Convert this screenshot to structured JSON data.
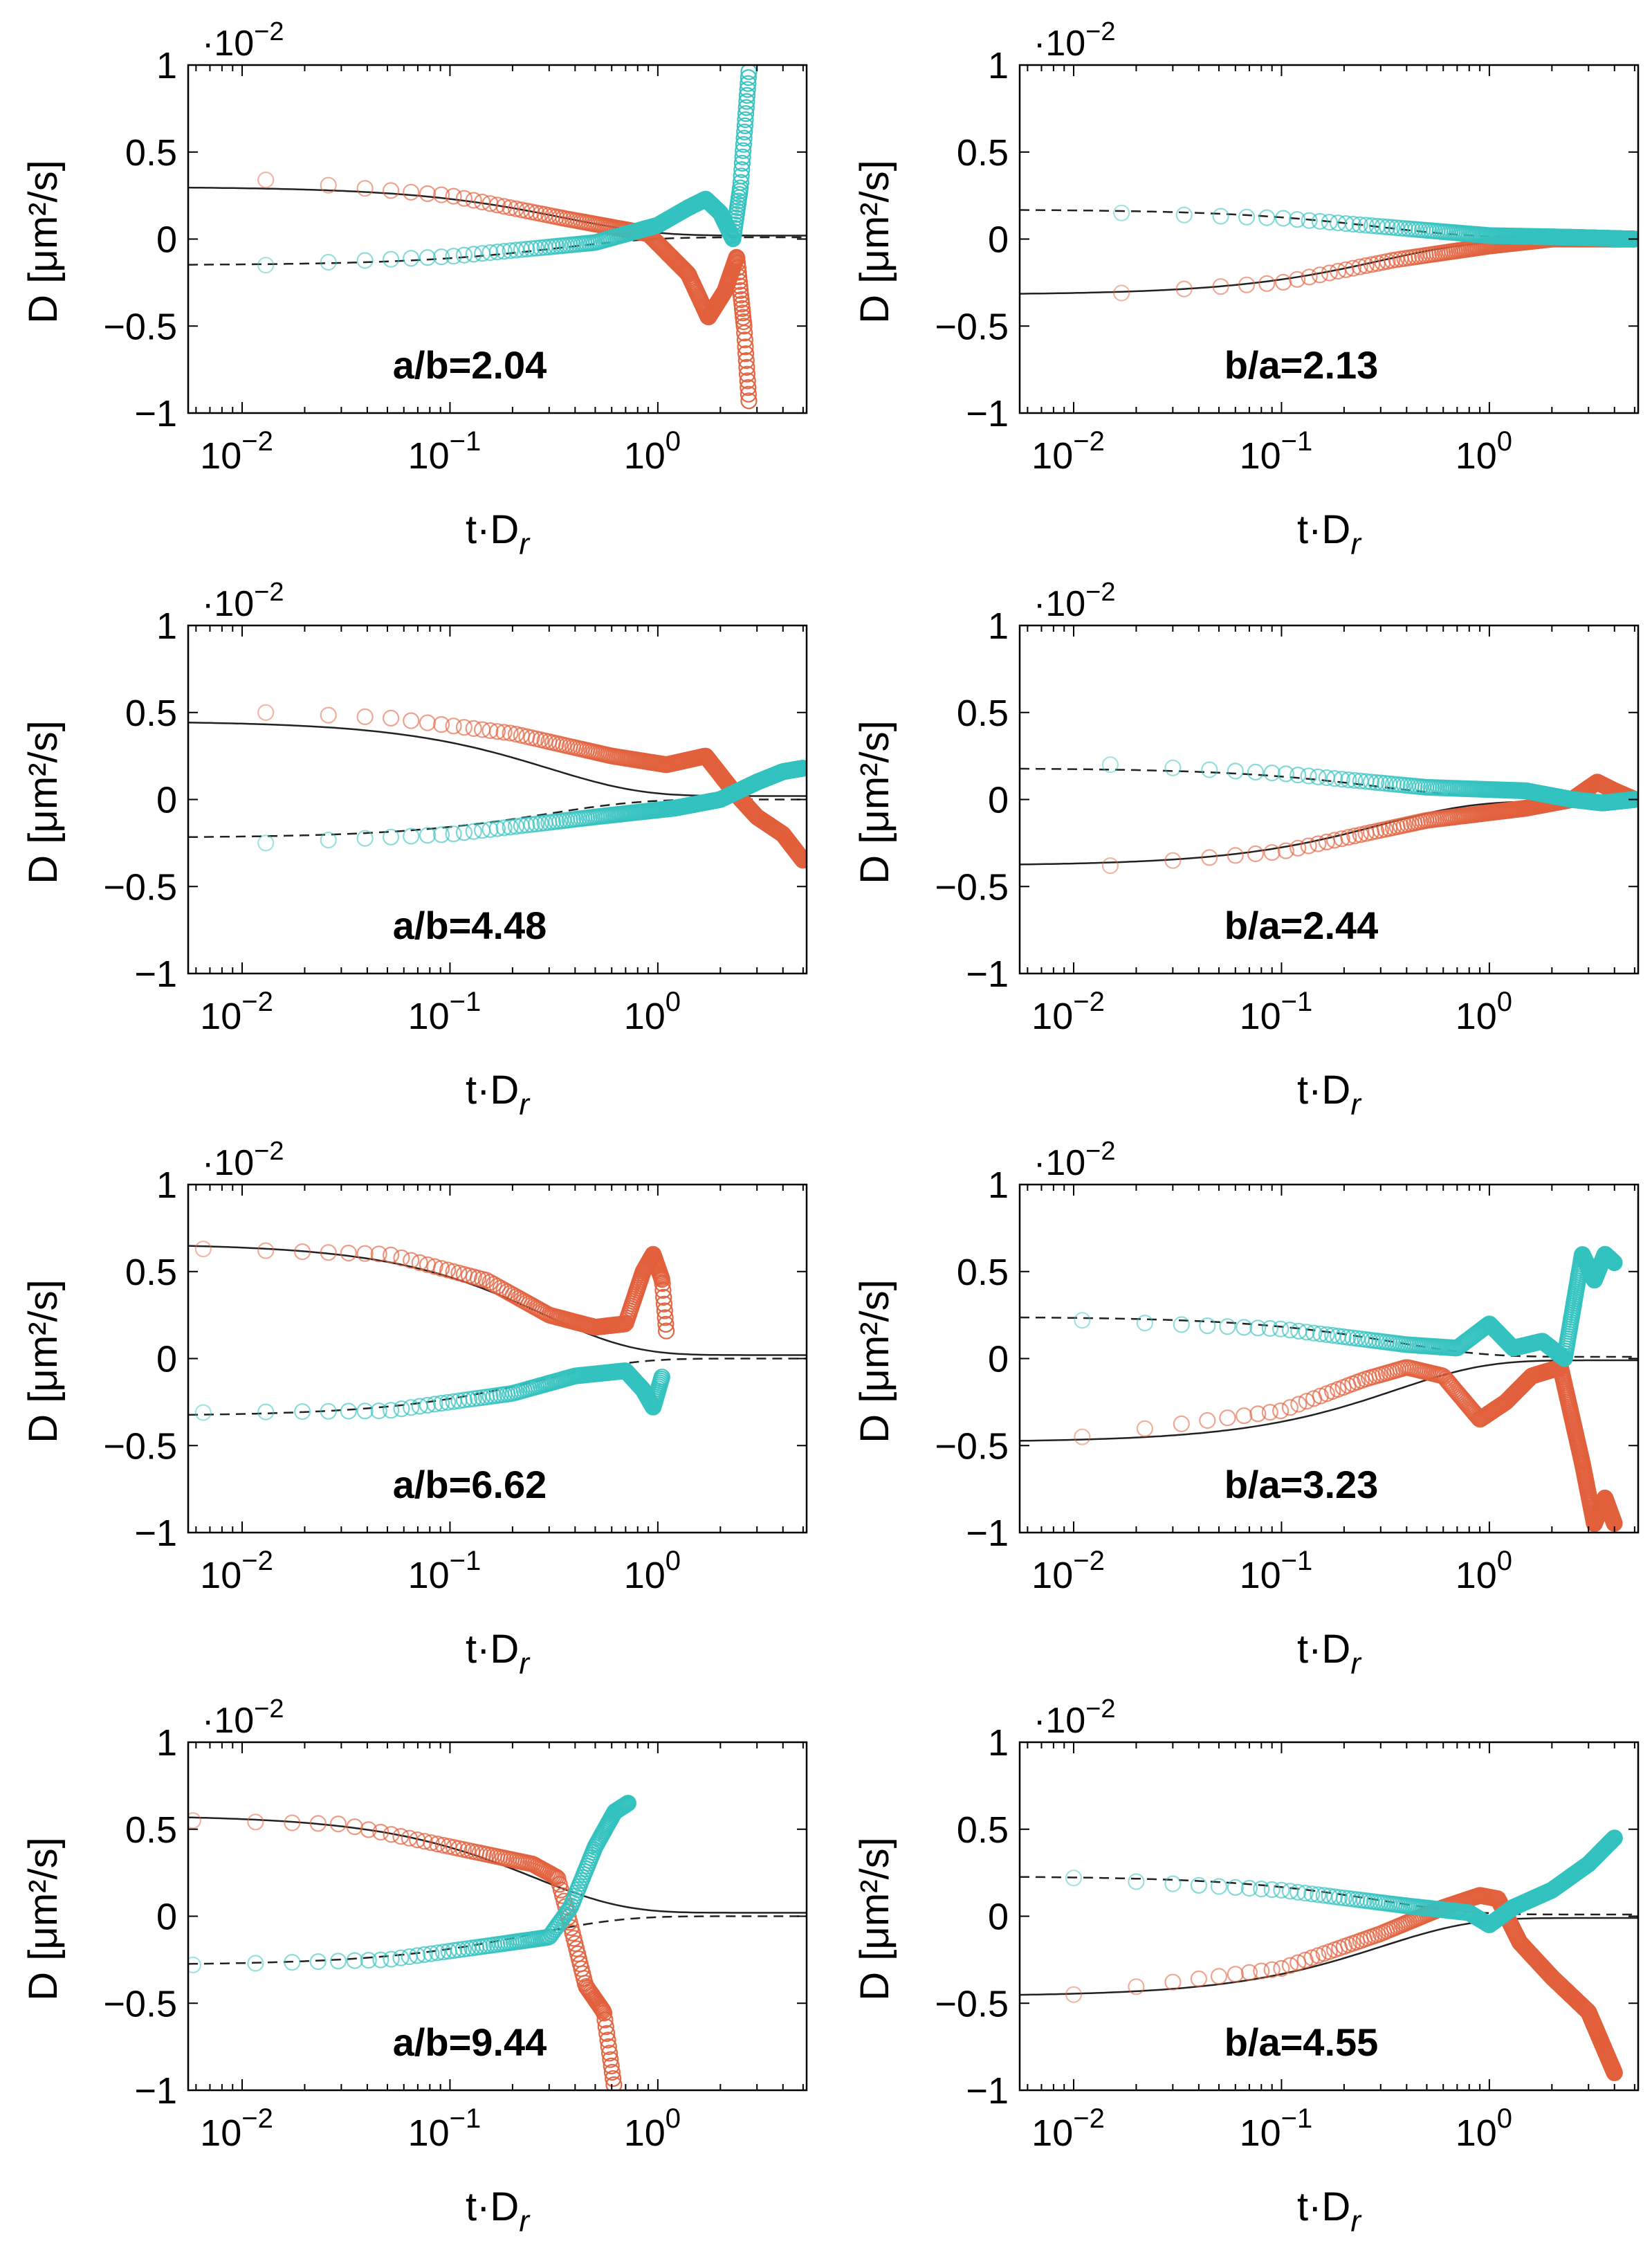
{
  "colors": {
    "orange": "#e2603c",
    "cyan": "#33c2bf",
    "axis": "#000000"
  },
  "chart_data": [
    {
      "type": "scatter",
      "label": "a/b=2.04",
      "xlabel": "t·D",
      "xlabel_sub": "r",
      "ylabel": "D [μm²/s]",
      "y_multiplier": "·10",
      "y_multiplier_exp": "−2",
      "xscale": "log",
      "xlim": [
        0.0055,
        5.2
      ],
      "ylim": [
        -1,
        1
      ],
      "yticks": [
        "1",
        "0.5",
        "0",
        "−0.5",
        "−1"
      ],
      "xticks": [
        "10",
        "10",
        "10"
      ],
      "xtick_exps": [
        "−2",
        "−1",
        "0"
      ],
      "theory": {
        "solid_start": 0.3,
        "solid_end": 0.02,
        "dashed_start": -0.15,
        "dashed_end": 0.01,
        "tau": 0.35
      },
      "orange_anchors": [
        [
          0.013,
          0.34
        ],
        [
          0.1,
          0.25
        ],
        [
          0.35,
          0.12
        ],
        [
          0.9,
          0.03
        ],
        [
          1.4,
          -0.2
        ],
        [
          1.75,
          -0.45
        ],
        [
          2.1,
          -0.3
        ],
        [
          2.4,
          -0.1
        ],
        [
          2.6,
          -0.5
        ],
        [
          2.75,
          -0.95
        ]
      ],
      "cyan_anchors": [
        [
          0.013,
          -0.15
        ],
        [
          0.1,
          -0.1
        ],
        [
          0.5,
          -0.02
        ],
        [
          1.0,
          0.08
        ],
        [
          1.4,
          0.18
        ],
        [
          1.7,
          0.23
        ],
        [
          2.0,
          0.15
        ],
        [
          2.3,
          0.0
        ],
        [
          2.5,
          0.3
        ],
        [
          2.75,
          0.98
        ]
      ],
      "orange_cut": 0.95,
      "cyan_cut": 0.95
    },
    {
      "type": "scatter",
      "label": "b/a=2.13",
      "xlabel": "t·D",
      "xlabel_sub": "r",
      "ylabel": "D [μm²/s]",
      "y_multiplier": "·10",
      "y_multiplier_exp": "−2",
      "xscale": "log",
      "xlim": [
        0.0055,
        5.2
      ],
      "ylim": [
        -1,
        1
      ],
      "yticks": [
        "1",
        "0.5",
        "0",
        "−0.5",
        "−1"
      ],
      "xticks": [
        "10",
        "10",
        "10"
      ],
      "xtick_exps": [
        "−2",
        "−1",
        "0"
      ],
      "theory": {
        "solid_start": -0.32,
        "solid_end": -0.01,
        "dashed_start": 0.17,
        "dashed_end": 0.01,
        "tau": 0.3
      },
      "orange_anchors": [
        [
          0.017,
          -0.31
        ],
        [
          0.1,
          -0.25
        ],
        [
          0.35,
          -0.12
        ],
        [
          1.0,
          -0.04
        ],
        [
          2.0,
          0.0
        ],
        [
          5.0,
          0.0
        ]
      ],
      "cyan_anchors": [
        [
          0.017,
          0.15
        ],
        [
          0.1,
          0.12
        ],
        [
          0.4,
          0.06
        ],
        [
          1.0,
          0.02
        ],
        [
          2.5,
          0.01
        ],
        [
          5.0,
          0.0
        ]
      ],
      "orange_cut": 0.95,
      "cyan_cut": 0.95
    },
    {
      "type": "scatter",
      "label": "a/b=4.48",
      "xlabel": "t·D",
      "xlabel_sub": "r",
      "ylabel": "D [μm²/s]",
      "y_multiplier": "·10",
      "y_multiplier_exp": "−2",
      "xscale": "log",
      "xlim": [
        0.0055,
        5.2
      ],
      "ylim": [
        -1,
        1
      ],
      "yticks": [
        "1",
        "0.5",
        "0",
        "−0.5",
        "−1"
      ],
      "xticks": [
        "10",
        "10",
        "10"
      ],
      "xtick_exps": [
        "−2",
        "−1",
        "0"
      ],
      "theory": {
        "solid_start": 0.45,
        "solid_end": 0.02,
        "dashed_start": -0.22,
        "dashed_end": 0.0,
        "tau": 0.3
      },
      "orange_anchors": [
        [
          0.013,
          0.5
        ],
        [
          0.05,
          0.47
        ],
        [
          0.2,
          0.38
        ],
        [
          0.6,
          0.25
        ],
        [
          1.1,
          0.2
        ],
        [
          1.7,
          0.25
        ],
        [
          2.3,
          0.05
        ],
        [
          3.0,
          -0.1
        ],
        [
          4.0,
          -0.2
        ],
        [
          5.0,
          -0.35
        ]
      ],
      "cyan_anchors": [
        [
          0.013,
          -0.25
        ],
        [
          0.1,
          -0.2
        ],
        [
          0.5,
          -0.1
        ],
        [
          1.2,
          -0.05
        ],
        [
          2.0,
          0.0
        ],
        [
          3.0,
          0.1
        ],
        [
          4.0,
          0.16
        ],
        [
          5.0,
          0.18
        ]
      ],
      "orange_cut": 0.95,
      "cyan_cut": 0.95
    },
    {
      "type": "scatter",
      "label": "b/a=2.44",
      "xlabel": "t·D",
      "xlabel_sub": "r",
      "ylabel": "D [μm²/s]",
      "y_multiplier": "·10",
      "y_multiplier_exp": "−2",
      "xscale": "log",
      "xlim": [
        0.0055,
        5.2
      ],
      "ylim": [
        -1,
        1
      ],
      "yticks": [
        "1",
        "0.5",
        "0",
        "−0.5",
        "−1"
      ],
      "xticks": [
        "10",
        "10",
        "10"
      ],
      "xtick_exps": [
        "−2",
        "−1",
        "0"
      ],
      "theory": {
        "solid_start": -0.38,
        "solid_end": -0.01,
        "dashed_start": 0.18,
        "dashed_end": 0.01,
        "tau": 0.3
      },
      "orange_anchors": [
        [
          0.015,
          -0.38
        ],
        [
          0.1,
          -0.3
        ],
        [
          0.5,
          -0.12
        ],
        [
          1.5,
          -0.05
        ],
        [
          2.5,
          0.0
        ],
        [
          3.3,
          0.1
        ],
        [
          4.0,
          0.05
        ],
        [
          5.0,
          0.0
        ]
      ],
      "cyan_anchors": [
        [
          0.015,
          0.2
        ],
        [
          0.1,
          0.15
        ],
        [
          0.5,
          0.07
        ],
        [
          1.5,
          0.05
        ],
        [
          2.5,
          0.0
        ],
        [
          3.5,
          -0.02
        ],
        [
          5.0,
          0.0
        ]
      ],
      "orange_cut": 0.95,
      "cyan_cut": 0.95
    },
    {
      "type": "scatter",
      "label": "a/b=6.62",
      "xlabel": "t·D",
      "xlabel_sub": "r",
      "ylabel": "D [μm²/s]",
      "y_multiplier": "·10",
      "y_multiplier_exp": "−2",
      "xscale": "log",
      "xlim": [
        0.0055,
        5.2
      ],
      "ylim": [
        -1,
        1
      ],
      "yticks": [
        "1",
        "0.5",
        "0",
        "−0.5",
        "−1"
      ],
      "xticks": [
        "10",
        "10",
        "10"
      ],
      "xtick_exps": [
        "−2",
        "−1",
        "0"
      ],
      "theory": {
        "solid_start": 0.66,
        "solid_end": 0.02,
        "dashed_start": -0.33,
        "dashed_end": 0.0,
        "tau": 0.28
      },
      "orange_anchors": [
        [
          0.0065,
          0.63
        ],
        [
          0.05,
          0.6
        ],
        [
          0.15,
          0.45
        ],
        [
          0.3,
          0.25
        ],
        [
          0.5,
          0.18
        ],
        [
          0.7,
          0.2
        ],
        [
          0.85,
          0.5
        ],
        [
          0.95,
          0.6
        ],
        [
          1.05,
          0.45
        ],
        [
          1.1,
          0.15
        ]
      ],
      "cyan_anchors": [
        [
          0.0065,
          -0.31
        ],
        [
          0.05,
          -0.3
        ],
        [
          0.2,
          -0.2
        ],
        [
          0.4,
          -0.1
        ],
        [
          0.7,
          -0.07
        ],
        [
          0.85,
          -0.18
        ],
        [
          0.95,
          -0.28
        ],
        [
          1.05,
          -0.1
        ]
      ],
      "orange_cut": 0.95,
      "cyan_cut": 0.95
    },
    {
      "type": "scatter",
      "label": "b/a=3.23",
      "xlabel": "t·D",
      "xlabel_sub": "r",
      "ylabel": "D [μm²/s]",
      "y_multiplier": "·10",
      "y_multiplier_exp": "−2",
      "xscale": "log",
      "xlim": [
        0.0055,
        5.2
      ],
      "ylim": [
        -1,
        1
      ],
      "yticks": [
        "1",
        "0.5",
        "0",
        "−0.5",
        "−1"
      ],
      "xticks": [
        "10",
        "10",
        "10"
      ],
      "xtick_exps": [
        "−2",
        "−1",
        "0"
      ],
      "theory": {
        "solid_start": -0.48,
        "solid_end": -0.01,
        "dashed_start": 0.24,
        "dashed_end": 0.01,
        "tau": 0.35
      },
      "orange_anchors": [
        [
          0.011,
          -0.45
        ],
        [
          0.1,
          -0.3
        ],
        [
          0.25,
          -0.12
        ],
        [
          0.4,
          -0.05
        ],
        [
          0.6,
          -0.1
        ],
        [
          0.9,
          -0.35
        ],
        [
          1.2,
          -0.25
        ],
        [
          1.6,
          -0.1
        ],
        [
          2.2,
          -0.05
        ],
        [
          2.8,
          -0.6
        ],
        [
          3.2,
          -0.95
        ],
        [
          3.6,
          -0.8
        ],
        [
          4.0,
          -0.95
        ]
      ],
      "cyan_anchors": [
        [
          0.011,
          0.22
        ],
        [
          0.1,
          0.17
        ],
        [
          0.4,
          0.08
        ],
        [
          0.7,
          0.06
        ],
        [
          1.0,
          0.2
        ],
        [
          1.3,
          0.06
        ],
        [
          1.8,
          0.1
        ],
        [
          2.3,
          0.0
        ],
        [
          2.8,
          0.6
        ],
        [
          3.2,
          0.45
        ],
        [
          3.6,
          0.6
        ],
        [
          4.0,
          0.55
        ]
      ],
      "orange_cut": 0.95,
      "cyan_cut": 0.95
    },
    {
      "type": "scatter",
      "label": "a/b=9.44",
      "xlabel": "t·D",
      "xlabel_sub": "r",
      "ylabel": "D [μm²/s]",
      "y_multiplier": "·10",
      "y_multiplier_exp": "−2",
      "xscale": "log",
      "xlim": [
        0.0055,
        5.2
      ],
      "ylim": [
        -1,
        1
      ],
      "yticks": [
        "1",
        "0.5",
        "0",
        "−0.5",
        "−1"
      ],
      "xticks": [
        "10",
        "10",
        "10"
      ],
      "xtick_exps": [
        "−2",
        "−1",
        "0"
      ],
      "theory": {
        "solid_start": 0.58,
        "solid_end": 0.02,
        "dashed_start": -0.28,
        "dashed_end": 0.0,
        "tau": 0.25
      },
      "orange_anchors": [
        [
          0.0058,
          0.55
        ],
        [
          0.03,
          0.53
        ],
        [
          0.1,
          0.4
        ],
        [
          0.25,
          0.3
        ],
        [
          0.33,
          0.22
        ],
        [
          0.38,
          -0.05
        ],
        [
          0.45,
          -0.4
        ],
        [
          0.55,
          -0.55
        ],
        [
          0.62,
          -1.0
        ]
      ],
      "cyan_anchors": [
        [
          0.0058,
          -0.28
        ],
        [
          0.05,
          -0.25
        ],
        [
          0.2,
          -0.15
        ],
        [
          0.3,
          -0.12
        ],
        [
          0.38,
          0.05
        ],
        [
          0.5,
          0.4
        ],
        [
          0.62,
          0.6
        ],
        [
          0.72,
          0.65
        ]
      ],
      "orange_cut": 0.95,
      "cyan_cut": 0.95
    },
    {
      "type": "scatter",
      "label": "b/a=4.55",
      "xlabel": "t·D",
      "xlabel_sub": "r",
      "ylabel": "D [μm²/s]",
      "y_multiplier": "·10",
      "y_multiplier_exp": "−2",
      "xscale": "log",
      "xlim": [
        0.0055,
        5.2
      ],
      "ylim": [
        -1,
        1
      ],
      "yticks": [
        "1",
        "0.5",
        "0",
        "−0.5",
        "−1"
      ],
      "xticks": [
        "10",
        "10",
        "10"
      ],
      "xtick_exps": [
        "−2",
        "−1",
        "0"
      ],
      "theory": {
        "solid_start": -0.46,
        "solid_end": -0.01,
        "dashed_start": 0.23,
        "dashed_end": 0.01,
        "tau": 0.3
      },
      "orange_anchors": [
        [
          0.01,
          -0.45
        ],
        [
          0.1,
          -0.3
        ],
        [
          0.3,
          -0.1
        ],
        [
          0.6,
          0.05
        ],
        [
          0.9,
          0.12
        ],
        [
          1.1,
          0.1
        ],
        [
          1.4,
          -0.15
        ],
        [
          2.0,
          -0.35
        ],
        [
          3.0,
          -0.55
        ],
        [
          4.0,
          -0.9
        ]
      ],
      "cyan_anchors": [
        [
          0.01,
          0.22
        ],
        [
          0.1,
          0.15
        ],
        [
          0.4,
          0.06
        ],
        [
          0.8,
          0.02
        ],
        [
          1.0,
          -0.05
        ],
        [
          1.3,
          0.05
        ],
        [
          2.0,
          0.15
        ],
        [
          3.0,
          0.3
        ],
        [
          4.0,
          0.45
        ]
      ],
      "orange_cut": 0.95,
      "cyan_cut": 0.95
    }
  ]
}
